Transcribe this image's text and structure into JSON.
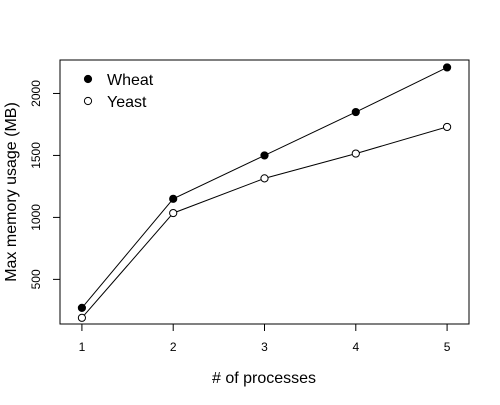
{
  "chart_data": {
    "type": "line",
    "title": "",
    "xlabel": "# of processes",
    "ylabel": "Max memory usage (MB)",
    "x": [
      1,
      2,
      3,
      4,
      5
    ],
    "xlim": [
      0.76,
      5.24
    ],
    "ylim": [
      140,
      2270
    ],
    "xticks": [
      1,
      2,
      3,
      4,
      5
    ],
    "yticks": [
      500,
      1000,
      1500,
      2000
    ],
    "series": [
      {
        "name": "Wheat",
        "values": [
          270,
          1150,
          1500,
          1850,
          2210
        ],
        "marker": "filled-circle",
        "color": "#000000"
      },
      {
        "name": "Yeast",
        "values": [
          190,
          1035,
          1315,
          1515,
          1730
        ],
        "marker": "open-circle",
        "color": "#000000"
      }
    ],
    "grid": false,
    "legend": "top-left"
  }
}
